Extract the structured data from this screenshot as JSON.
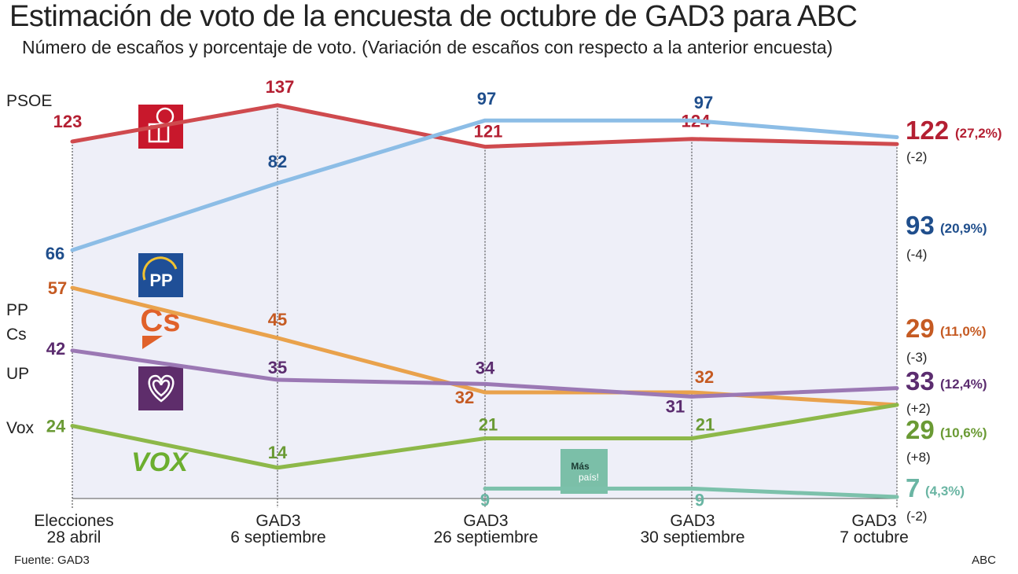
{
  "header": {
    "title": "Estimación de voto de la encuesta de octubre de GAD3 para ABC",
    "subtitle": "Número de escaños y porcentaje de voto. (Variación de escaños con respecto a la anterior encuesta)"
  },
  "footer": {
    "source": "Fuente: GAD3",
    "credit": "ABC"
  },
  "logos": {
    "pp": "PP",
    "cs": "Cs",
    "vox": "VOX",
    "mas_pais_1": "Más",
    "mas_pais_2": "país!"
  },
  "chart_data": {
    "type": "line",
    "title": "Estimación de voto de la encuesta de octubre de GAD3 para ABC",
    "subtitle": "Número de escaños y porcentaje de voto. (Variación de escaños con respecto a la anterior encuesta)",
    "categories": [
      {
        "line1": "Elecciones",
        "line2": "28 abril"
      },
      {
        "line1": "GAD3",
        "line2": "6 septiembre"
      },
      {
        "line1": "GAD3",
        "line2": "26 septiembre"
      },
      {
        "line1": "GAD3",
        "line2": "30 septiembre"
      },
      {
        "line1": "GAD3",
        "line2": "7 octubre"
      }
    ],
    "grid": "vertical dotted",
    "series": [
      {
        "name": "PSOE",
        "color": "#cf4a4e",
        "label_color": "#b41f32",
        "values": [
          123,
          137,
          121,
          124,
          122
        ],
        "final_pct": "(27,2%)",
        "change": "(-2)"
      },
      {
        "name": "PP",
        "color": "#8cbde6",
        "label_color": "#1f4e8c",
        "values": [
          66,
          82,
          97,
          97,
          93
        ],
        "final_pct": "(20,9%)",
        "change": "(-4)"
      },
      {
        "name": "Cs",
        "color": "#e9a24c",
        "label_color": "#c55a22",
        "values": [
          57,
          45,
          32,
          32,
          29
        ],
        "final_pct": "(11,0%)",
        "change": "(-3)"
      },
      {
        "name": "UP",
        "color": "#9b78b4",
        "label_color": "#5b2c6f",
        "values": [
          42,
          35,
          34,
          31,
          33
        ],
        "final_pct": "(12,4%)",
        "change": "(+2)"
      },
      {
        "name": "Vox",
        "color": "#8db849",
        "label_color": "#6a9a34",
        "values": [
          24,
          14,
          21,
          21,
          29
        ],
        "final_pct": "(10,6%)",
        "change": "(+8)"
      },
      {
        "name": "",
        "color": "#7cc1ab",
        "label_color": "#6ab5a3",
        "values": [
          null,
          null,
          9,
          9,
          7
        ],
        "final_pct": "(4,3%)",
        "change": "(-2)"
      }
    ]
  }
}
